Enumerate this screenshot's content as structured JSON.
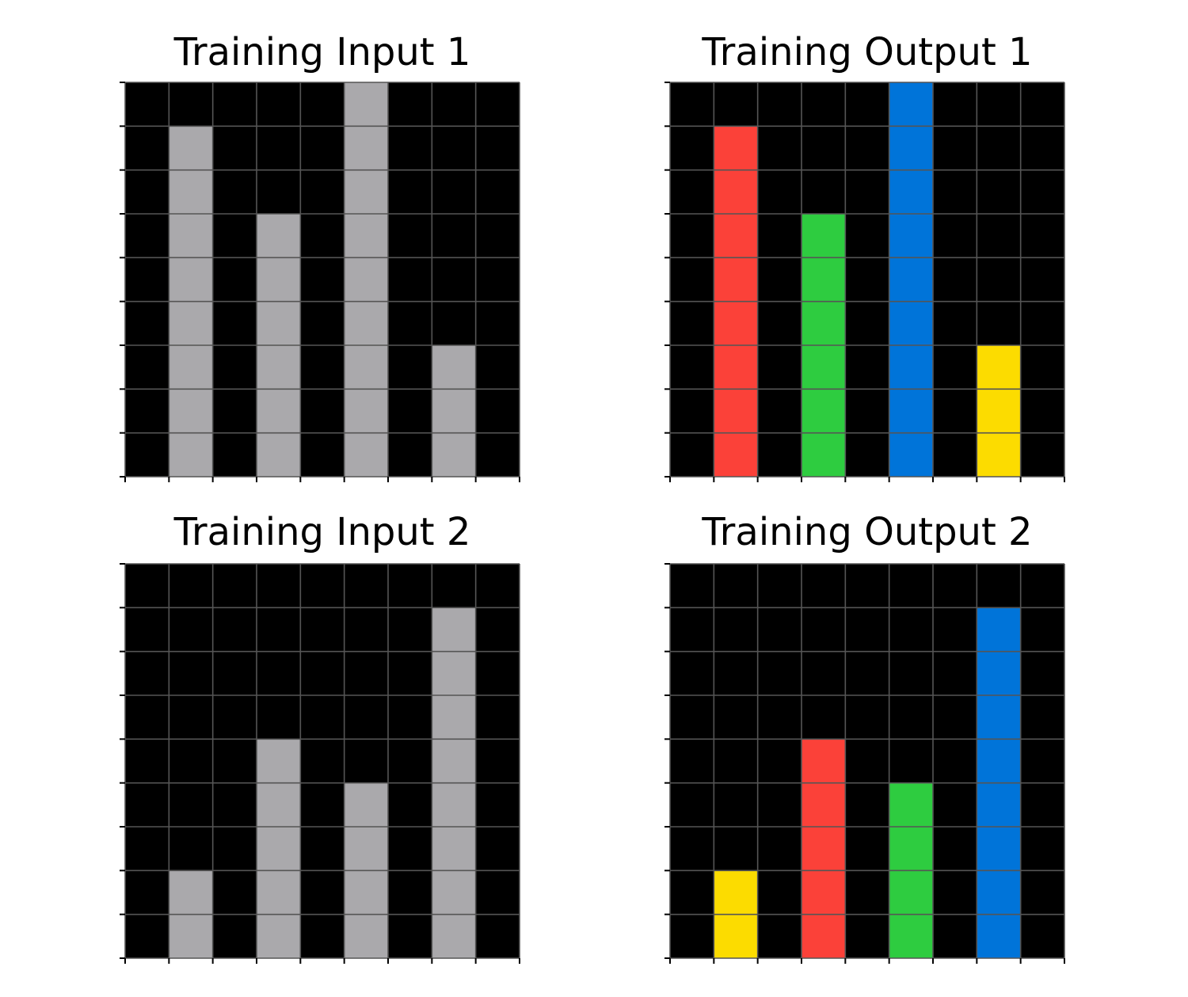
{
  "palette": {
    "0": "#000000",
    "2": "#fb4139",
    "3": "#2ecc40",
    "4": "#0074d9",
    "5": "#fcdc00",
    "9": "#aaa9ac"
  },
  "grid_line_color": "#555555",
  "panels": [
    {
      "title": "Training Input 1",
      "grid": [
        [
          0,
          0,
          0,
          0,
          0,
          9,
          0,
          0,
          0
        ],
        [
          0,
          9,
          0,
          0,
          0,
          9,
          0,
          0,
          0
        ],
        [
          0,
          9,
          0,
          0,
          0,
          9,
          0,
          0,
          0
        ],
        [
          0,
          9,
          0,
          9,
          0,
          9,
          0,
          0,
          0
        ],
        [
          0,
          9,
          0,
          9,
          0,
          9,
          0,
          0,
          0
        ],
        [
          0,
          9,
          0,
          9,
          0,
          9,
          0,
          0,
          0
        ],
        [
          0,
          9,
          0,
          9,
          0,
          9,
          0,
          9,
          0
        ],
        [
          0,
          9,
          0,
          9,
          0,
          9,
          0,
          9,
          0
        ],
        [
          0,
          9,
          0,
          9,
          0,
          9,
          0,
          9,
          0
        ]
      ]
    },
    {
      "title": "Training Output 1",
      "grid": [
        [
          0,
          0,
          0,
          0,
          0,
          4,
          0,
          0,
          0
        ],
        [
          0,
          2,
          0,
          0,
          0,
          4,
          0,
          0,
          0
        ],
        [
          0,
          2,
          0,
          0,
          0,
          4,
          0,
          0,
          0
        ],
        [
          0,
          2,
          0,
          3,
          0,
          4,
          0,
          0,
          0
        ],
        [
          0,
          2,
          0,
          3,
          0,
          4,
          0,
          0,
          0
        ],
        [
          0,
          2,
          0,
          3,
          0,
          4,
          0,
          0,
          0
        ],
        [
          0,
          2,
          0,
          3,
          0,
          4,
          0,
          5,
          0
        ],
        [
          0,
          2,
          0,
          3,
          0,
          4,
          0,
          5,
          0
        ],
        [
          0,
          2,
          0,
          3,
          0,
          4,
          0,
          5,
          0
        ]
      ]
    },
    {
      "title": "Training Input 2",
      "grid": [
        [
          0,
          0,
          0,
          0,
          0,
          0,
          0,
          0,
          0
        ],
        [
          0,
          0,
          0,
          0,
          0,
          0,
          0,
          9,
          0
        ],
        [
          0,
          0,
          0,
          0,
          0,
          0,
          0,
          9,
          0
        ],
        [
          0,
          0,
          0,
          0,
          0,
          0,
          0,
          9,
          0
        ],
        [
          0,
          0,
          0,
          9,
          0,
          0,
          0,
          9,
          0
        ],
        [
          0,
          0,
          0,
          9,
          0,
          9,
          0,
          9,
          0
        ],
        [
          0,
          0,
          0,
          9,
          0,
          9,
          0,
          9,
          0
        ],
        [
          0,
          9,
          0,
          9,
          0,
          9,
          0,
          9,
          0
        ],
        [
          0,
          9,
          0,
          9,
          0,
          9,
          0,
          9,
          0
        ]
      ]
    },
    {
      "title": "Training Output 2",
      "grid": [
        [
          0,
          0,
          0,
          0,
          0,
          0,
          0,
          0,
          0
        ],
        [
          0,
          0,
          0,
          0,
          0,
          0,
          0,
          4,
          0
        ],
        [
          0,
          0,
          0,
          0,
          0,
          0,
          0,
          4,
          0
        ],
        [
          0,
          0,
          0,
          0,
          0,
          0,
          0,
          4,
          0
        ],
        [
          0,
          0,
          0,
          2,
          0,
          0,
          0,
          4,
          0
        ],
        [
          0,
          0,
          0,
          2,
          0,
          3,
          0,
          4,
          0
        ],
        [
          0,
          0,
          0,
          2,
          0,
          3,
          0,
          4,
          0
        ],
        [
          0,
          5,
          0,
          2,
          0,
          3,
          0,
          4,
          0
        ],
        [
          0,
          5,
          0,
          2,
          0,
          3,
          0,
          4,
          0
        ]
      ]
    }
  ]
}
